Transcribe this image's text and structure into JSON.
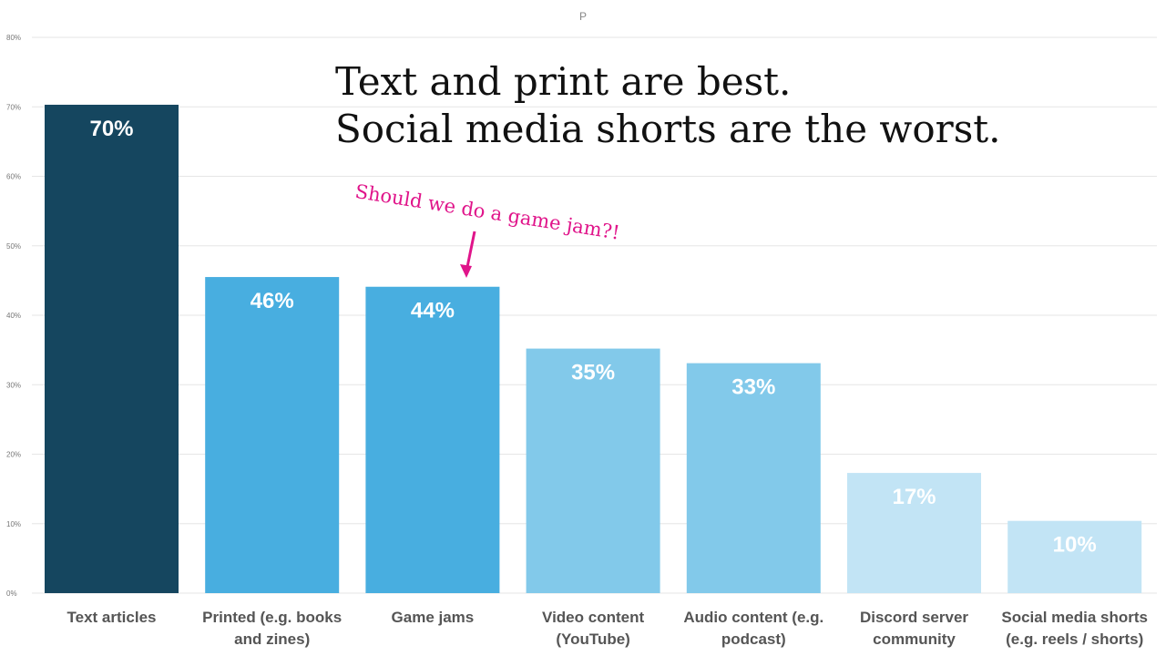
{
  "chart_data": {
    "type": "bar",
    "title": "P",
    "xlabel": "",
    "ylabel": "",
    "ylim": [
      0,
      80
    ],
    "yticks": [
      "0%",
      "10%",
      "20%",
      "30%",
      "40%",
      "50%",
      "60%",
      "70%",
      "80%"
    ],
    "grid": true,
    "categories": [
      [
        "Text articles"
      ],
      [
        "Printed (e.g. books",
        "and zines)"
      ],
      [
        "Game jams"
      ],
      [
        "Video content",
        "(YouTube)"
      ],
      [
        "Audio content (e.g.",
        "podcast)"
      ],
      [
        "Discord server",
        "community"
      ],
      [
        "Social media shorts",
        "(e.g. reels / shorts)"
      ]
    ],
    "values": [
      70.3,
      45.5,
      44.1,
      35.2,
      33.1,
      17.3,
      10.4
    ],
    "data_labels": [
      "70%",
      "46%",
      "44%",
      "35%",
      "33%",
      "17%",
      "10%"
    ],
    "bar_colors": [
      "#15465f",
      "#48aee0",
      "#48aee0",
      "#82c9ea",
      "#82c9ea",
      "#c2e4f5",
      "#c2e4f5"
    ],
    "headline": [
      "Text and print are best.",
      "Social media shorts are the worst."
    ],
    "annotation": "Should we do a game jam?!",
    "annotation_color": "#e0148a"
  }
}
